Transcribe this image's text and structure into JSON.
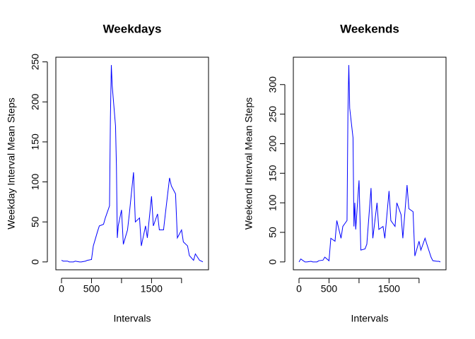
{
  "chart_data": [
    {
      "type": "line",
      "title": "Weekdays",
      "x_label": "Intervals",
      "y_label": "Weekday Interval Mean Steps",
      "color": "#0000ff",
      "x": [
        0,
        30,
        100,
        130,
        200,
        230,
        300,
        330,
        400,
        430,
        500,
        530,
        600,
        630,
        700,
        730,
        800,
        815,
        830,
        845,
        900,
        915,
        930,
        945,
        1000,
        1030,
        1100,
        1130,
        1200,
        1230,
        1300,
        1330,
        1400,
        1430,
        1500,
        1530,
        1600,
        1630,
        1700,
        1730,
        1800,
        1830,
        1900,
        1930,
        2000,
        2030,
        2100,
        2130,
        2200,
        2230,
        2300,
        2330,
        2355
      ],
      "values": [
        2,
        1,
        1,
        0,
        0,
        1,
        0,
        0,
        1,
        2,
        3,
        20,
        38,
        45,
        47,
        55,
        70,
        180,
        246,
        220,
        170,
        120,
        30,
        45,
        65,
        22,
        40,
        60,
        112,
        50,
        55,
        20,
        45,
        30,
        82,
        45,
        60,
        40,
        40,
        60,
        105,
        95,
        85,
        30,
        40,
        25,
        20,
        8,
        2,
        10,
        2,
        1,
        0
      ],
      "xlim": [
        -94.2,
        2449.2
      ],
      "xticks": [
        0,
        500,
        {
          "value": 1000,
          "label": null
        },
        1500,
        {
          "value": 2000,
          "label": null
        }
      ],
      "ylim": [
        -9.84,
        255.84
      ],
      "yticks": [
        0,
        50,
        100,
        150,
        200,
        250
      ]
    },
    {
      "type": "line",
      "title": "Weekends",
      "x_label": "Intervals",
      "y_label": "Weekend Interval Mean Steps",
      "color": "#0000ff",
      "x": [
        0,
        30,
        100,
        130,
        200,
        230,
        300,
        330,
        400,
        430,
        500,
        530,
        600,
        630,
        700,
        730,
        800,
        815,
        830,
        845,
        900,
        915,
        930,
        945,
        1000,
        1030,
        1100,
        1130,
        1200,
        1230,
        1300,
        1330,
        1400,
        1430,
        1500,
        1530,
        1600,
        1630,
        1700,
        1730,
        1800,
        1830,
        1900,
        1930,
        2000,
        2030,
        2100,
        2130,
        2200,
        2230,
        2300,
        2330,
        2355
      ],
      "values": [
        0,
        5,
        0,
        0,
        1,
        0,
        0,
        2,
        3,
        8,
        2,
        40,
        35,
        70,
        40,
        60,
        70,
        250,
        333,
        260,
        210,
        60,
        100,
        55,
        138,
        20,
        22,
        30,
        125,
        40,
        100,
        55,
        60,
        40,
        120,
        70,
        60,
        100,
        80,
        40,
        130,
        90,
        85,
        10,
        35,
        20,
        40,
        30,
        8,
        2,
        1,
        1,
        0
      ],
      "xlim": [
        -94.2,
        2449.2
      ],
      "xticks": [
        0,
        500,
        {
          "value": 1000,
          "label": null
        },
        1500,
        {
          "value": 2000,
          "label": null
        }
      ],
      "ylim": [
        -13.32,
        346.32
      ],
      "yticks": [
        0,
        50,
        100,
        150,
        200,
        250,
        300
      ]
    }
  ]
}
